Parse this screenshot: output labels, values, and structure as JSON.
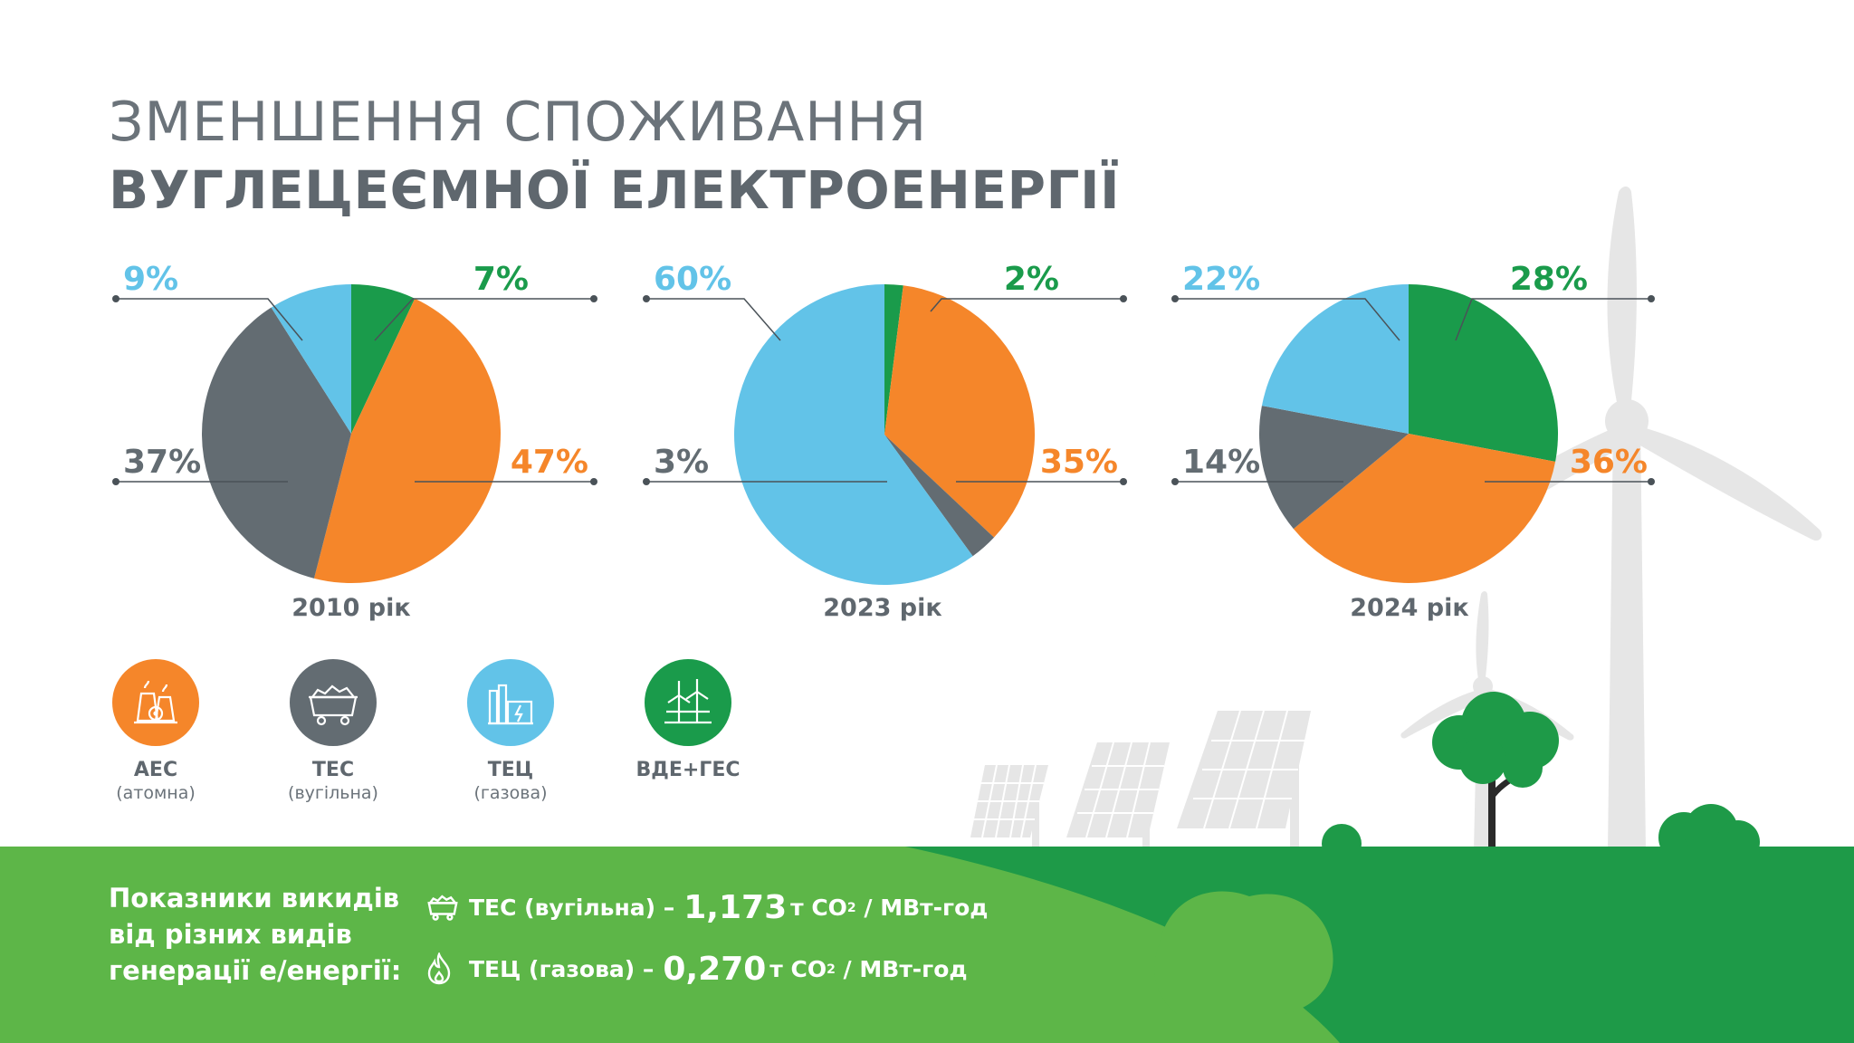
{
  "title": {
    "line1": "ЗМЕНШЕННЯ СПОЖИВАННЯ",
    "line2": "ВУГЛЕЦЕЄМНОЇ ЕЛЕКТРОЕНЕРГІЇ"
  },
  "colors": {
    "aes": "#f5862a",
    "tes": "#636c72",
    "tec": "#62c3e8",
    "vde": "#1a9b4b",
    "ground_light": "#5db648",
    "ground_dark": "#1e9a48",
    "text_gray": "#5f676e",
    "decor_gray": "#e6e6e6"
  },
  "chart_data": [
    {
      "type": "pie",
      "title": "2010 рік",
      "labels": [
        "АЕС",
        "ТЕС",
        "ТЕЦ",
        "ВДЕ+ГЕС"
      ],
      "values": [
        47,
        37,
        9,
        7
      ],
      "value_labels": [
        "47%",
        "37%",
        "9%",
        "7%"
      ]
    },
    {
      "type": "pie",
      "title": "2023 рік",
      "labels": [
        "АЕС",
        "ТЕС",
        "ТЕЦ",
        "ВДЕ+ГЕС"
      ],
      "values": [
        35,
        3,
        60,
        2
      ],
      "value_labels": [
        "35%",
        "3%",
        "60%",
        "2%"
      ]
    },
    {
      "type": "pie",
      "title": "2024 рік",
      "labels": [
        "АЕС",
        "ТЕС",
        "ТЕЦ",
        "ВДЕ+ГЕС"
      ],
      "values": [
        36,
        14,
        22,
        28
      ],
      "value_labels": [
        "36%",
        "14%",
        "22%",
        "28%"
      ]
    }
  ],
  "legend": [
    {
      "label": "АЕС",
      "sub": "(атомна)",
      "icon": "nuclear-plant-icon"
    },
    {
      "label": "ТЕС",
      "sub": "(вугільна)",
      "icon": "coal-cart-icon"
    },
    {
      "label": "ТЕЦ",
      "sub": "(газова)",
      "icon": "gas-plant-icon"
    },
    {
      "label": "ВДЕ+ГЕС",
      "sub": "",
      "icon": "wind-turbines-icon"
    }
  ],
  "emissions": {
    "title_lines": [
      "Показники викидів",
      "від різних видів",
      "генерації е/енергії:"
    ],
    "rows": [
      {
        "icon": "coal-cart-icon",
        "label": "ТЕС (вугільна) –",
        "value": "1,173",
        "unit_prefix": "т CO",
        "unit_sub": "2",
        "unit_suffix": " / МВт-год"
      },
      {
        "icon": "flame-icon",
        "label": "ТЕЦ (газова) –",
        "value": "0,270",
        "unit_prefix": "т CO",
        "unit_sub": "2",
        "unit_suffix": " / МВт-год"
      }
    ]
  }
}
